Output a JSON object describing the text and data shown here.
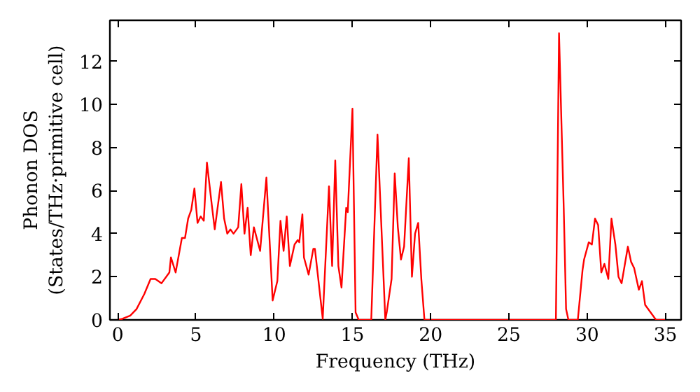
{
  "chart_data": {
    "type": "line",
    "xlabel": "Frequency (THz)",
    "ylabel": "Phonon DOS\n(States/THz·primitive cell)",
    "xlim": [
      -0.5,
      36
    ],
    "ylim": [
      0,
      13.9
    ],
    "xticks": [
      0,
      5,
      10,
      15,
      20,
      25,
      30,
      35
    ],
    "yticks": [
      0,
      2,
      4,
      6,
      8,
      10,
      12
    ],
    "grid": false,
    "series": [
      {
        "color": "#ff0000",
        "x": [
          0,
          0.3,
          0.8,
          1.2,
          1.7,
          2.1,
          2.4,
          2.8,
          3.3,
          3.4,
          3.7,
          4.1,
          4.3,
          4.5,
          4.7,
          4.9,
          5.1,
          5.3,
          5.5,
          5.7,
          6.0,
          6.2,
          6.6,
          6.8,
          7.0,
          7.2,
          7.4,
          7.7,
          7.9,
          8.1,
          8.3,
          8.5,
          8.7,
          9.1,
          9.5,
          9.9,
          10.2,
          10.4,
          10.6,
          10.8,
          11.0,
          11.3,
          11.5,
          11.6,
          11.8,
          11.9,
          12.2,
          12.5,
          12.6,
          13.1,
          13.5,
          13.7,
          13.9,
          14.1,
          14.3,
          14.6,
          14.7,
          15.0,
          15.2,
          15.4,
          16.2,
          16.6,
          17.1,
          17.2,
          17.5,
          17.7,
          17.9,
          18.1,
          18.3,
          18.6,
          18.8,
          19.0,
          19.2,
          19.4,
          19.6,
          28.0,
          28.2,
          28.5,
          28.65,
          28.8,
          29.4,
          29.7,
          29.8,
          30.1,
          30.3,
          30.5,
          30.7,
          30.9,
          31.1,
          31.35,
          31.55,
          31.8,
          32.0,
          32.2,
          32.6,
          32.8,
          33.0,
          33.3,
          33.5,
          33.7,
          34.4,
          35.0
        ],
        "values": [
          0,
          0.05,
          0.2,
          0.5,
          1.2,
          1.9,
          1.9,
          1.7,
          2.2,
          2.9,
          2.2,
          3.8,
          3.8,
          4.7,
          5.1,
          6.1,
          4.5,
          4.8,
          4.6,
          7.3,
          5.4,
          4.2,
          6.4,
          4.7,
          4.0,
          4.2,
          4.0,
          4.3,
          6.3,
          4.0,
          5.2,
          3.0,
          4.3,
          3.2,
          6.6,
          0.9,
          1.8,
          4.6,
          3.2,
          4.8,
          2.5,
          3.5,
          3.7,
          3.6,
          4.9,
          2.9,
          2.1,
          3.3,
          3.3,
          0.05,
          6.2,
          2.5,
          7.4,
          2.5,
          1.5,
          5.2,
          5.0,
          9.8,
          0.35,
          0,
          0,
          8.6,
          0,
          0.4,
          1.9,
          6.8,
          4.3,
          2.8,
          3.4,
          7.5,
          2.0,
          4.0,
          4.5,
          1.9,
          0,
          0,
          13.3,
          5.2,
          0.5,
          0,
          0,
          2.3,
          2.8,
          3.6,
          3.5,
          4.7,
          4.4,
          2.2,
          2.6,
          1.9,
          4.7,
          3.5,
          2.0,
          1.7,
          3.4,
          2.7,
          2.4,
          1.4,
          1.8,
          0.7,
          0,
          0
        ]
      }
    ]
  }
}
